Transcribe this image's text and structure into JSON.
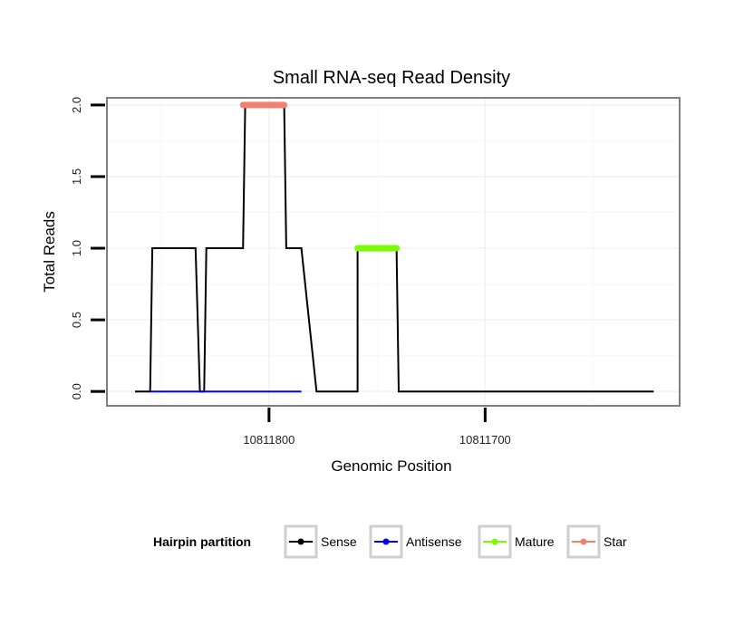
{
  "chart_data": {
    "type": "line",
    "title": "Small RNA-seq Read Density",
    "xlabel": "Genomic Position",
    "ylabel": "Total Reads",
    "x_reversed": true,
    "xlim": [
      10811875,
      10811610
    ],
    "ylim": [
      -0.1,
      2.05
    ],
    "x_ticks": [
      10811800,
      10811700
    ],
    "x_tick_labels": [
      "10811800",
      "10811700"
    ],
    "y_ticks": [
      0.0,
      0.5,
      1.0,
      1.5,
      2.0
    ],
    "y_tick_labels": [
      "0.0",
      "0.5",
      "1.0",
      "1.5",
      "2.0"
    ],
    "grid": true,
    "legend": {
      "title": "Hairpin partition",
      "placement": "bottom",
      "entries": [
        {
          "name": "Sense",
          "color": "#000000"
        },
        {
          "name": "Antisense",
          "color": "#0000ff"
        },
        {
          "name": "Mature",
          "color": "#7cfc00"
        },
        {
          "name": "Star",
          "color": "#f08070"
        }
      ]
    },
    "series": [
      {
        "name": "Sense",
        "color": "#000000",
        "x": [
          10811862,
          10811855,
          10811854,
          10811834,
          10811832,
          10811830,
          10811829,
          10811812,
          10811811,
          10811793,
          10811792,
          10811786,
          10811785,
          10811778,
          10811771,
          10811759,
          10811759,
          10811741,
          10811740,
          10811622
        ],
        "y": [
          0,
          0,
          1,
          1,
          0,
          0,
          1,
          1,
          2,
          2,
          1,
          1,
          1,
          0,
          0,
          0,
          1,
          1,
          0,
          0
        ]
      },
      {
        "name": "Antisense",
        "color": "#0000ff",
        "x": [
          10811855,
          10811785
        ],
        "y": [
          0,
          0
        ]
      },
      {
        "name": "Mature",
        "color": "#7cfc00",
        "x": [
          10811759,
          10811741
        ],
        "y": [
          1,
          1
        ]
      },
      {
        "name": "Star",
        "color": "#f08070",
        "x": [
          10811812,
          10811793
        ],
        "y": [
          2,
          2
        ]
      }
    ]
  }
}
